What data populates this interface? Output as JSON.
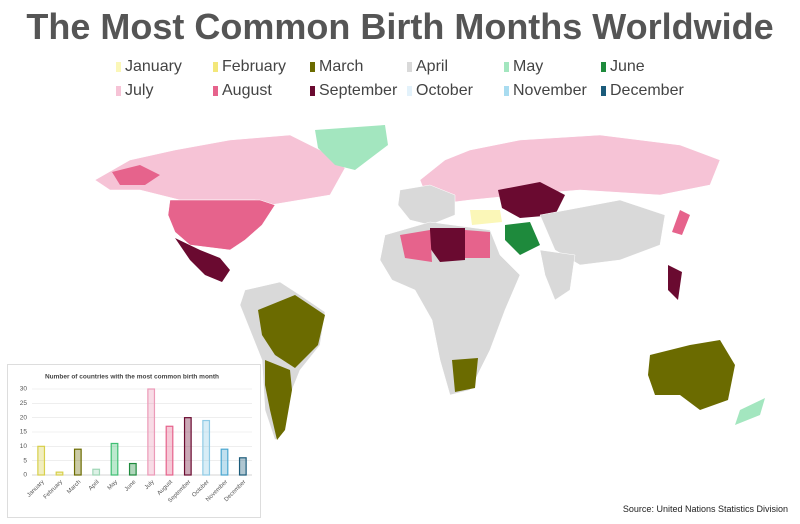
{
  "title": "The Most Common Birth Months Worldwide",
  "legend": [
    {
      "label": "January",
      "color": "#fbf7b8"
    },
    {
      "label": "February",
      "color": "#f3e77a"
    },
    {
      "label": "March",
      "color": "#6b6b00"
    },
    {
      "label": "April",
      "color": "#d9d9d9"
    },
    {
      "label": "May",
      "color": "#a3e6bf"
    },
    {
      "label": "June",
      "color": "#1e8a3c"
    },
    {
      "label": "July",
      "color": "#f6c3d6"
    },
    {
      "label": "August",
      "color": "#e6638c"
    },
    {
      "label": "September",
      "color": "#6a0a30"
    },
    {
      "label": "October",
      "color": "#e3f2fb"
    },
    {
      "label": "November",
      "color": "#a9dcf0"
    },
    {
      "label": "December",
      "color": "#1b5b7a"
    }
  ],
  "chart_data": {
    "type": "bar",
    "title": "Number of countries with the most common birth month",
    "categories": [
      "January",
      "February",
      "March",
      "April",
      "May",
      "June",
      "July",
      "August",
      "September",
      "October",
      "November",
      "December"
    ],
    "values": [
      10,
      1,
      9,
      2,
      11,
      4,
      30,
      17,
      20,
      19,
      9,
      6
    ],
    "colors": [
      "#d8cf4a",
      "#d8cf4a",
      "#6b6b00",
      "#9fd6b6",
      "#3fbf73",
      "#1e8a3c",
      "#ec9ab8",
      "#e6638c",
      "#6a0a30",
      "#8fcbe6",
      "#4aa6d0",
      "#1b5b7a"
    ],
    "ylim": [
      0,
      30
    ],
    "yticks": [
      0,
      5,
      10,
      15,
      20,
      25,
      30
    ],
    "grid": true
  },
  "source": "Source: United Nations Statistics Division"
}
